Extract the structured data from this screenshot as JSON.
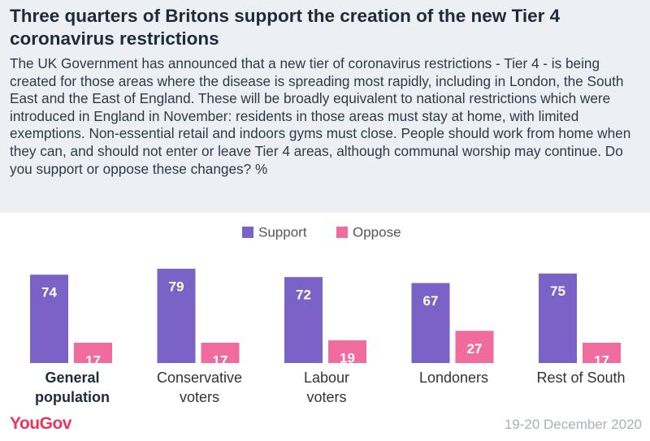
{
  "chart_data": {
    "type": "bar",
    "title": "Three quarters of Britons support the creation of the new Tier 4 coronavirus restrictions",
    "subtitle": "The UK Government has announced that a new tier of coronavirus restrictions - Tier 4 - is being created for those areas where the disease is spreading most rapidly, including in London, the South East and the East of England. These will be broadly equivalent to national restrictions which were introduced in England in November: residents in those areas must stay at home, with limited exemptions. Non-essential retail and indoors gyms must close. People should work from home when they can, and should not enter or leave Tier 4 areas, although communal worship may continue. Do you support or oppose these changes? %",
    "categories": [
      "General\npopulation",
      "Conservative\nvoters",
      "Labour\nvoters",
      "Londoners",
      "Rest of South"
    ],
    "series": [
      {
        "name": "Support",
        "color": "#7b62c6",
        "values": [
          74,
          79,
          72,
          67,
          75
        ]
      },
      {
        "name": "Oppose",
        "color": "#f06b9e",
        "values": [
          17,
          17,
          19,
          27,
          17
        ]
      }
    ],
    "legend": "top",
    "logo": "YouGov",
    "date": "19-20 December 2020"
  }
}
